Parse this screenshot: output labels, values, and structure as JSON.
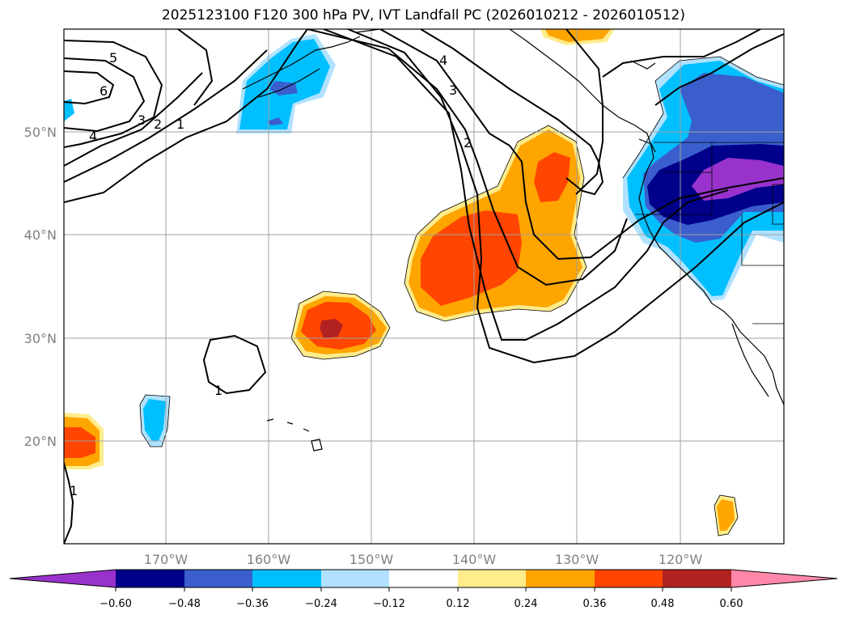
{
  "title": "2025123100 F120 300 hPa PV, IVT Landfall PC (2026010212 - 2026010512)",
  "axes": {
    "lon_ticks": [
      "170°W",
      "160°W",
      "150°W",
      "140°W",
      "130°W",
      "120°W"
    ],
    "lat_ticks": [
      "50°N",
      "40°N",
      "30°N",
      "20°N"
    ]
  },
  "contour_labels": [
    "5",
    "6",
    "4",
    "3",
    "2",
    "1",
    "4",
    "3",
    "2",
    "1",
    "1"
  ],
  "colorbar": {
    "ticks": [
      "−0.60",
      "−0.48",
      "−0.36",
      "−0.24",
      "−0.12",
      "0.12",
      "0.24",
      "0.36",
      "0.48",
      "0.60"
    ],
    "colors": [
      "#9932cc",
      "#00008b",
      "#3a5fcd",
      "#00bfff",
      "#b0e2ff",
      "#ffffff",
      "#ffec8b",
      "#ffa500",
      "#ff4500",
      "#b22222",
      "#ff88aa"
    ]
  }
}
